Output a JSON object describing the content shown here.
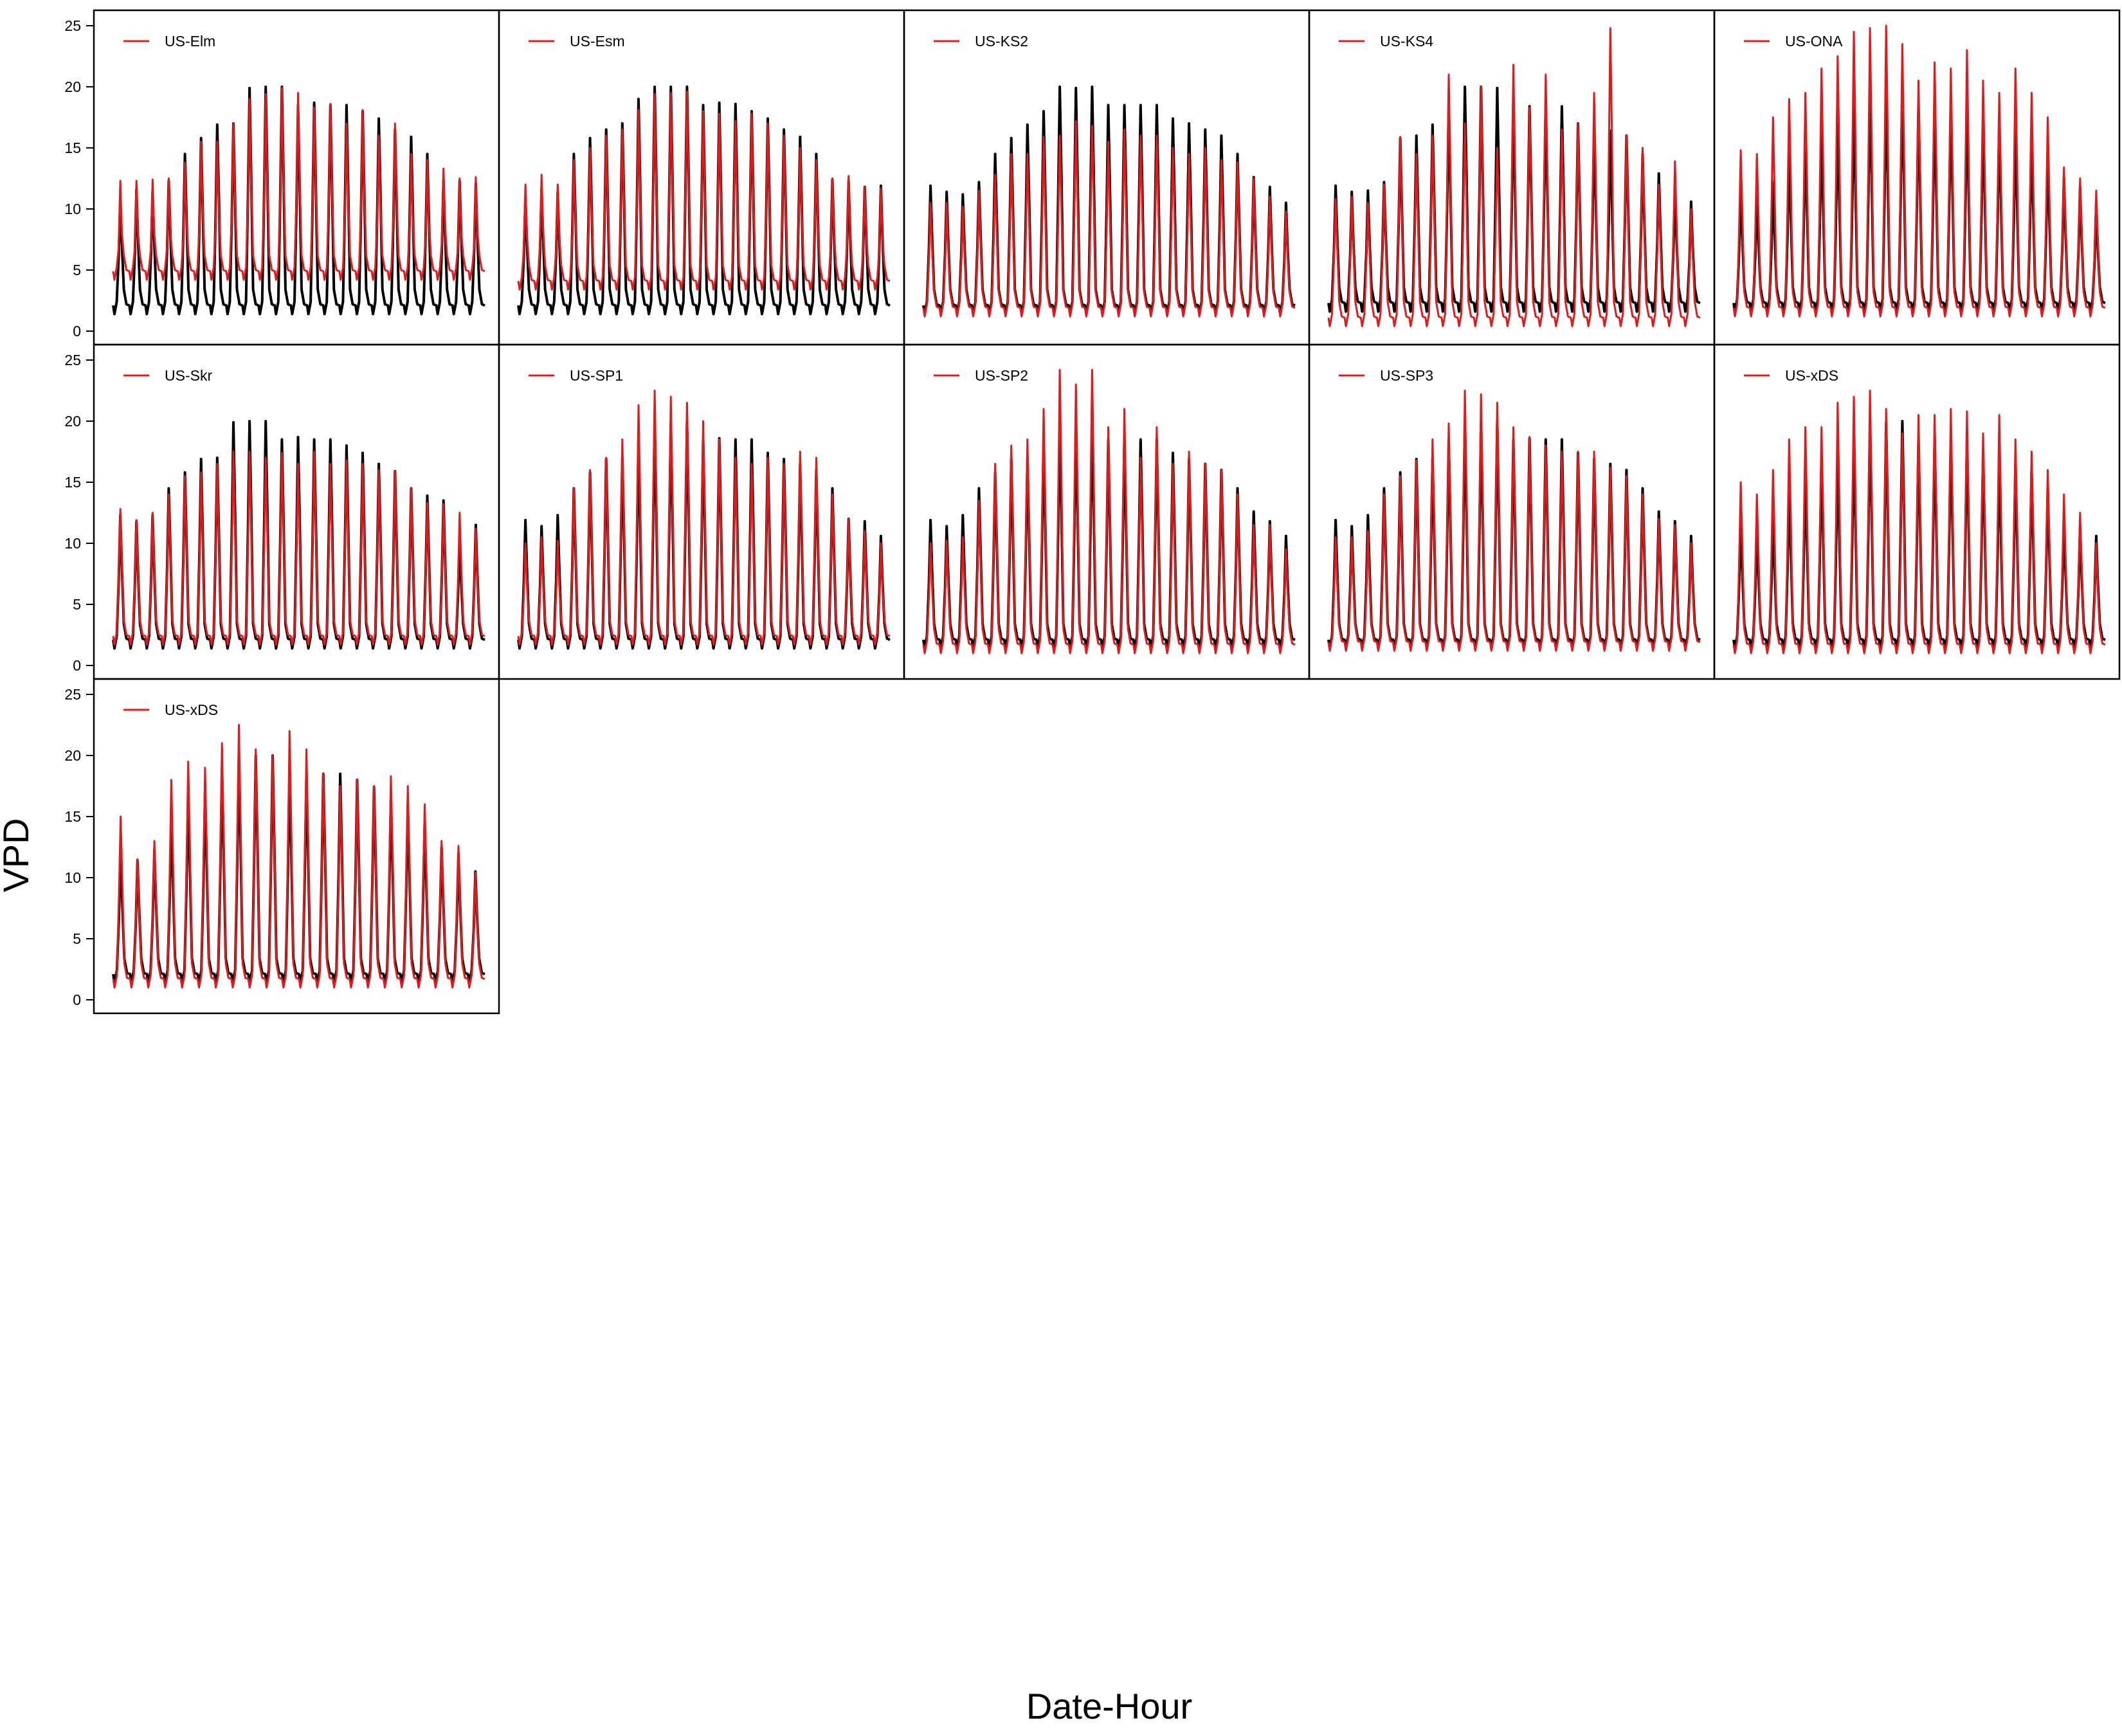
{
  "chart_data": {
    "type": "line",
    "xlabel": "Date-Hour",
    "ylabel": "VPD",
    "ylim": [
      0,
      25
    ],
    "yticks": [
      0,
      5,
      10,
      15,
      20,
      25
    ],
    "grid": false,
    "legend_position": "top-left",
    "colors": {
      "obs": "#000000",
      "model": "#e31a1c"
    },
    "panels": [
      {
        "legend": "US-Elm",
        "obs_peaks": [
          10.9,
          11.6,
          11.4,
          12.3,
          14.5,
          15.8,
          16.9,
          17.0,
          19.9,
          20.0,
          20.0,
          18.5,
          18.7,
          18.5,
          18.5,
          18.0,
          17.4,
          16.5,
          15.9,
          14.5,
          12.4,
          12.3,
          12.1
        ],
        "model_peaks": [
          12.3,
          12.3,
          12.4,
          12.5,
          13.8,
          15.5,
          15.5,
          17.0,
          19.0,
          19.4,
          19.9,
          19.5,
          18.3,
          18.6,
          17.0,
          18.1,
          16.0,
          17.0,
          14.5,
          14.0,
          13.3,
          12.5,
          12.6
        ],
        "obs_trough": 1.2,
        "model_trough": 4.0
      },
      {
        "legend": "US-Esm",
        "obs_peaks": [
          10.9,
          11.6,
          11.4,
          14.5,
          15.8,
          16.5,
          17.0,
          19.0,
          20.0,
          20.0,
          20.0,
          18.5,
          18.7,
          18.6,
          18.0,
          17.4,
          16.5,
          15.9,
          14.5,
          12.4,
          12.3,
          11.8,
          11.9
        ],
        "model_peaks": [
          12.0,
          12.8,
          12.0,
          14.0,
          15.0,
          16.0,
          16.5,
          18.1,
          19.4,
          19.5,
          19.6,
          18.0,
          17.8,
          17.2,
          17.8,
          17.0,
          16.0,
          15.0,
          14.0,
          12.5,
          12.7,
          11.8,
          11.7
        ],
        "obs_trough": 1.2,
        "model_trough": 3.2
      },
      {
        "legend": "US-KS2",
        "obs_peaks": [
          11.9,
          11.4,
          11.2,
          12.2,
          14.5,
          15.8,
          16.9,
          18.0,
          20.0,
          19.9,
          20.0,
          18.5,
          18.5,
          18.5,
          18.5,
          17.4,
          17.0,
          16.5,
          16.0,
          14.5,
          12.6,
          11.8,
          10.5
        ],
        "model_peaks": [
          10.5,
          10.5,
          10.2,
          11.5,
          12.8,
          14.5,
          14.5,
          15.9,
          16.0,
          17.2,
          16.8,
          15.5,
          16.5,
          16.0,
          16.0,
          15.0,
          14.5,
          15.0,
          14.0,
          13.8,
          12.5,
          11.0,
          9.8
        ],
        "obs_trough": 1.2,
        "model_trough": 1.0
      },
      {
        "legend": "US-KS4",
        "obs_peaks": [
          11.9,
          11.4,
          11.5,
          12.2,
          15.8,
          16.0,
          16.9,
          18.5,
          20.0,
          20.0,
          19.9,
          18.5,
          18.4,
          18.5,
          18.4,
          17.0,
          16.5,
          16.4,
          16.0,
          14.5,
          12.9,
          11.8,
          10.6
        ],
        "model_peaks": [
          10.8,
          11.0,
          10.5,
          12.0,
          15.9,
          14.5,
          16.0,
          21.0,
          17.0,
          20.0,
          15.0,
          21.8,
          18.3,
          21.0,
          16.5,
          17.0,
          19.5,
          24.8,
          16.0,
          15.0,
          12.0,
          13.9,
          10.0
        ],
        "obs_trough": 1.4,
        "model_trough": 0.2
      },
      {
        "legend": "US-ONA",
        "obs_peaks": [
          11.8,
          11.2,
          12.2,
          14.5,
          15.8,
          16.5,
          17.0,
          18.5,
          20.0,
          19.9,
          20.0,
          18.5,
          18.6,
          18.5,
          18.5,
          17.4,
          16.9,
          16.5,
          16.0,
          14.5,
          12.6,
          11.8,
          10.5
        ],
        "model_peaks": [
          14.8,
          14.5,
          17.5,
          19.0,
          19.5,
          21.5,
          22.5,
          24.5,
          24.8,
          25.0,
          23.5,
          20.5,
          22.0,
          21.5,
          23.0,
          20.5,
          19.5,
          21.5,
          19.5,
          17.5,
          13.4,
          12.5,
          11.5
        ],
        "obs_trough": 1.4,
        "model_trough": 1.0
      },
      {
        "legend": "US-Skr",
        "obs_peaks": [
          12.3,
          11.8,
          12.3,
          14.5,
          15.8,
          16.9,
          17.0,
          19.9,
          20.0,
          20.0,
          18.5,
          18.7,
          18.5,
          18.5,
          18.0,
          17.4,
          16.5,
          15.9,
          14.5,
          13.9,
          13.5,
          10.5,
          11.5
        ],
        "model_peaks": [
          12.8,
          11.9,
          12.5,
          14.0,
          15.5,
          15.8,
          16.5,
          17.5,
          17.5,
          17.0,
          17.4,
          16.5,
          17.5,
          16.5,
          16.8,
          16.5,
          16.0,
          15.9,
          14.5,
          13.3,
          13.2,
          12.5,
          11.2
        ],
        "obs_trough": 1.2,
        "model_trough": 1.5
      },
      {
        "legend": "US-SP1",
        "obs_peaks": [
          11.9,
          11.4,
          12.3,
          14.5,
          15.8,
          16.9,
          17.0,
          18.5,
          20.0,
          19.9,
          20.0,
          18.5,
          18.6,
          18.5,
          18.5,
          17.4,
          16.9,
          16.5,
          16.0,
          14.5,
          12.0,
          11.8,
          10.6
        ],
        "model_peaks": [
          10.0,
          10.5,
          10.2,
          14.5,
          16.0,
          17.0,
          18.5,
          21.3,
          22.5,
          22.0,
          21.5,
          20.0,
          18.5,
          17.0,
          16.5,
          17.0,
          16.5,
          17.5,
          17.0,
          14.0,
          12.0,
          11.0,
          10.0
        ],
        "obs_trough": 1.2,
        "model_trough": 1.5
      },
      {
        "legend": "US-SP2",
        "obs_peaks": [
          11.9,
          11.4,
          12.3,
          14.5,
          15.8,
          16.9,
          17.0,
          18.5,
          20.0,
          19.9,
          20.0,
          18.5,
          18.6,
          18.5,
          18.5,
          17.4,
          16.9,
          16.5,
          16.0,
          14.5,
          12.6,
          11.8,
          10.6
        ],
        "model_peaks": [
          10.0,
          10.2,
          10.5,
          13.5,
          16.5,
          18.0,
          18.5,
          21.0,
          24.2,
          23.0,
          24.2,
          19.5,
          21.0,
          17.0,
          19.5,
          16.5,
          17.5,
          16.5,
          16.0,
          14.0,
          11.5,
          11.5,
          9.5
        ],
        "obs_trough": 1.2,
        "model_trough": 0.8
      },
      {
        "legend": "US-SP3",
        "obs_peaks": [
          11.9,
          11.4,
          12.3,
          14.5,
          15.8,
          16.9,
          17.0,
          18.5,
          20.0,
          19.9,
          20.0,
          18.5,
          18.6,
          18.5,
          18.5,
          17.4,
          16.9,
          16.5,
          16.0,
          14.5,
          12.6,
          11.8,
          10.6
        ],
        "model_peaks": [
          10.5,
          10.5,
          11.0,
          14.0,
          15.5,
          16.8,
          18.5,
          19.8,
          22.5,
          22.2,
          21.5,
          19.5,
          18.7,
          18.0,
          17.5,
          17.5,
          17.5,
          16.2,
          15.5,
          14.0,
          12.0,
          11.5,
          10.0
        ],
        "obs_trough": 1.2,
        "model_trough": 1.0
      },
      {
        "legend": "US-xDS",
        "obs_peaks": [
          11.8,
          11.2,
          12.2,
          14.5,
          15.8,
          16.9,
          17.0,
          18.5,
          20.0,
          19.9,
          20.0,
          18.5,
          18.6,
          18.5,
          18.5,
          17.4,
          16.9,
          16.5,
          16.0,
          14.5,
          12.0,
          11.4,
          10.6
        ],
        "model_peaks": [
          15.0,
          14.0,
          16.0,
          18.5,
          19.5,
          19.5,
          21.5,
          22.0,
          22.5,
          21.0,
          19.0,
          20.5,
          20.5,
          21.0,
          20.8,
          19.0,
          20.5,
          18.5,
          17.5,
          16.0,
          14.0,
          12.5,
          10.0
        ],
        "obs_trough": 1.2,
        "model_trough": 0.8
      },
      {
        "legend": "US-xDS",
        "obs_peaks": [
          12.2,
          11.4,
          12.3,
          15.0,
          16.9,
          17.0,
          19.0,
          19.9,
          20.0,
          20.0,
          19.0,
          18.5,
          18.5,
          18.5,
          18.0,
          17.4,
          16.5,
          15.9,
          14.5,
          12.5,
          12.0,
          10.5
        ],
        "model_peaks": [
          15.0,
          11.5,
          13.0,
          18.0,
          19.5,
          19.0,
          21.0,
          22.5,
          20.5,
          20.0,
          22.0,
          20.5,
          18.5,
          17.5,
          18.0,
          17.5,
          18.3,
          17.5,
          16.0,
          13.0,
          12.6,
          10.4
        ],
        "obs_trough": 1.2,
        "model_trough": 0.8
      }
    ]
  }
}
